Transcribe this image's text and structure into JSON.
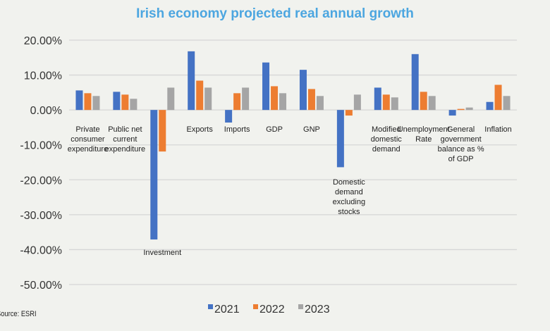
{
  "chart_data": {
    "type": "bar",
    "title": "Irish economy projected real annual growth",
    "categories": [
      "Private consumer expenditure",
      "Public net current expenditure",
      "Investment",
      "Exports",
      "Imports",
      "GDP",
      "GNP",
      "Domestic demand excluding stocks",
      "Modified domestic demand",
      "Unemployment Rate",
      "General government balance as % of GDP",
      "Inflation"
    ],
    "category_label_lines": [
      [
        "Private",
        "consumer",
        "expenditure"
      ],
      [
        "Public net",
        "current",
        "expenditure"
      ],
      [
        "Investment"
      ],
      [
        "Exports"
      ],
      [
        "Imports"
      ],
      [
        "GDP"
      ],
      [
        "GNP"
      ],
      [
        "Domestic",
        "demand",
        "excluding",
        "stocks"
      ],
      [
        "Modified",
        "domestic",
        "demand"
      ],
      [
        "Unemployment",
        "Rate"
      ],
      [
        "General",
        "government",
        "balance as %",
        "of GDP"
      ],
      [
        "Inflation"
      ]
    ],
    "series": [
      {
        "name": "2021",
        "color": "#4472c4",
        "values": [
          5.6,
          5.2,
          -37.1,
          16.8,
          -3.6,
          13.6,
          11.5,
          -16.4,
          6.4,
          16.0,
          -1.6,
          2.3
        ]
      },
      {
        "name": "2022",
        "color": "#ed7d31",
        "values": [
          4.8,
          4.4,
          -11.9,
          8.4,
          4.8,
          6.8,
          6.0,
          -1.6,
          4.4,
          5.2,
          0.3,
          7.2
        ]
      },
      {
        "name": "2023",
        "color": "#a5a5a5",
        "values": [
          4.0,
          3.2,
          6.4,
          6.4,
          6.4,
          4.8,
          4.0,
          4.4,
          3.6,
          4.0,
          0.7,
          4.0
        ]
      }
    ],
    "yticks": [
      "20.00%",
      "10.00%",
      "0.00%",
      "-10.00%",
      "-20.00%",
      "-30.00%",
      "-40.00%",
      "-50.00%"
    ],
    "ylim": [
      -50,
      20
    ],
    "ylabel": "",
    "xlabel": "",
    "grid": true,
    "legend": "bottom",
    "source": "Source: ESRI"
  }
}
